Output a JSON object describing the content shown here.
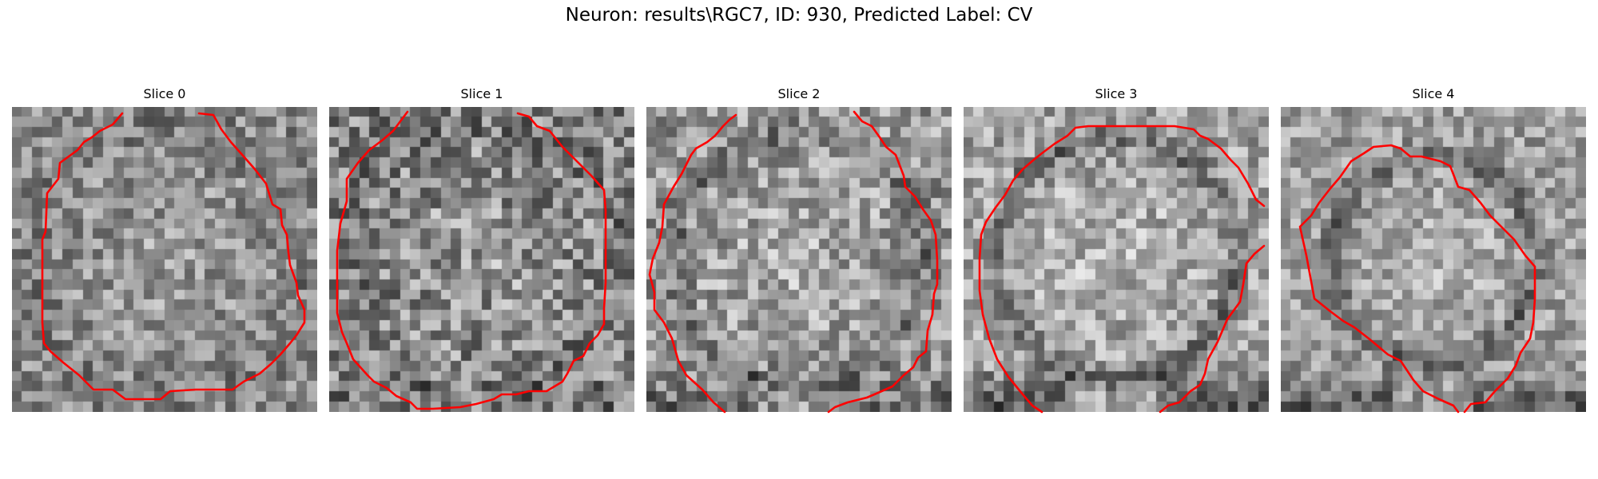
{
  "figure": {
    "title": "Neuron: results\\RGC7, ID: 930, Predicted Label: CV"
  },
  "panels": [
    {
      "title": "Slice 0",
      "seed": 101,
      "radius": 0.92,
      "contrast": 0.22,
      "mean": 0.54,
      "dark_ring": 0.05,
      "dark_corner": 0.0
    },
    {
      "title": "Slice 1",
      "seed": 202,
      "radius": 0.92,
      "contrast": 0.28,
      "mean": 0.52,
      "dark_ring": 0.06,
      "dark_corner": 0.05
    },
    {
      "title": "Slice 2",
      "seed": 303,
      "radius": 0.85,
      "contrast": 0.24,
      "mean": 0.6,
      "dark_ring": 0.16,
      "dark_corner": 0.18
    },
    {
      "title": "Slice 3",
      "seed": 404,
      "radius": 0.82,
      "contrast": 0.22,
      "mean": 0.64,
      "dark_ring": 0.24,
      "dark_corner": 0.3
    },
    {
      "title": "Slice 4",
      "seed": 505,
      "radius": 0.7,
      "contrast": 0.2,
      "mean": 0.62,
      "dark_ring": 0.22,
      "dark_corner": 0.25
    }
  ],
  "colors": {
    "contour": "#ff0000",
    "background": "#ffffff"
  }
}
